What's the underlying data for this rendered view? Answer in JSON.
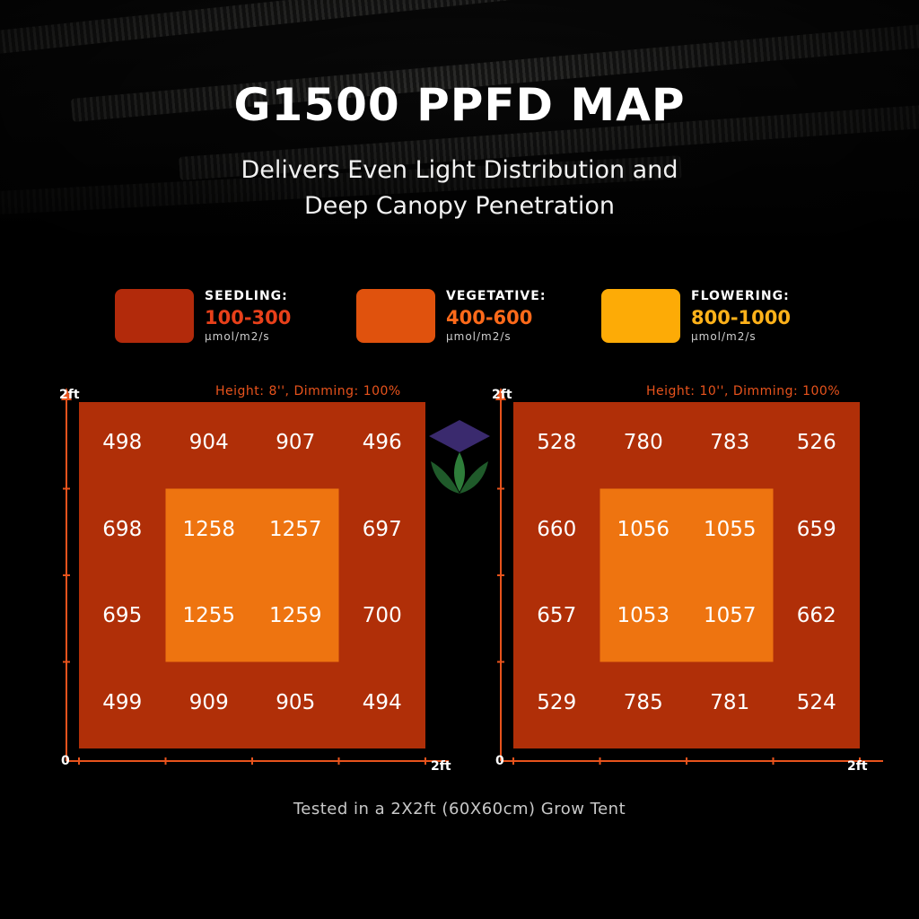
{
  "header": {
    "title": "G1500 PPFD MAP",
    "subtitle_line1": "Delivers Even Light Distribution and",
    "subtitle_line2": "Deep Canopy Penetration"
  },
  "legend": [
    {
      "name": "SEEDLING:",
      "range": "100-300",
      "unit": "μmol/m2/s",
      "color": "#b22a0b",
      "range_color": "#e8401a"
    },
    {
      "name": "VEGETATIVE:",
      "range": "400-600",
      "unit": "μmol/m2/s",
      "color": "#e0520d",
      "range_color": "#ff6a1a"
    },
    {
      "name": "FLOWERING:",
      "range": "800-1000",
      "unit": "μmol/m2/s",
      "color": "#fdab06",
      "range_color": "#ffb21a"
    }
  ],
  "colors": {
    "map_outer": "#b02f08",
    "map_inner": "#ee7410",
    "axis": "#e8531c"
  },
  "chart_data": [
    {
      "type": "heatmap",
      "title": "Height: 8'', Dimming: 100%",
      "x_axis": {
        "start": "0",
        "end": "2ft"
      },
      "y_axis": {
        "start": "0",
        "end": "2ft"
      },
      "grid": [
        [
          498,
          904,
          907,
          496
        ],
        [
          698,
          1258,
          1257,
          697
        ],
        [
          695,
          1255,
          1259,
          700
        ],
        [
          499,
          909,
          905,
          494
        ]
      ]
    },
    {
      "type": "heatmap",
      "title": "Height: 10'', Dimming: 100%",
      "x_axis": {
        "start": "0",
        "end": "2ft"
      },
      "y_axis": {
        "start": "0",
        "end": "2ft"
      },
      "grid": [
        [
          528,
          780,
          783,
          526
        ],
        [
          660,
          1056,
          1055,
          659
        ],
        [
          657,
          1053,
          1057,
          662
        ],
        [
          529,
          785,
          781,
          524
        ]
      ]
    }
  ],
  "footer": "Tested in a 2X2ft (60X60cm) Grow Tent"
}
